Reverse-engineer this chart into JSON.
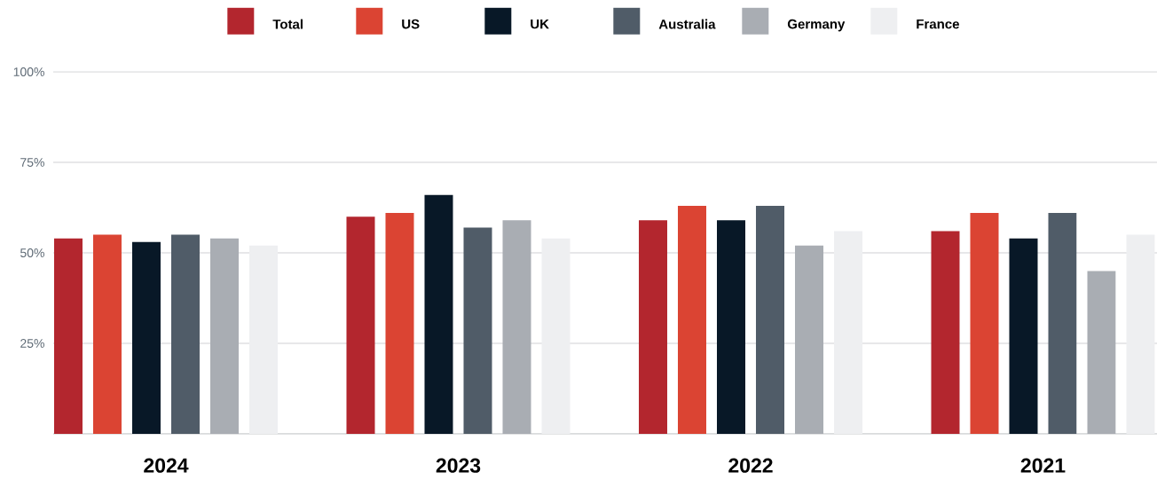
{
  "chart_data": {
    "type": "bar",
    "categories": [
      "2024",
      "2023",
      "2022",
      "2021"
    ],
    "series": [
      {
        "name": "Total",
        "color": "#b3262e",
        "values": [
          54,
          60,
          59,
          56
        ]
      },
      {
        "name": "US",
        "color": "#db4433",
        "values": [
          55,
          61,
          63,
          61
        ]
      },
      {
        "name": "UK",
        "color": "#081827",
        "values": [
          53,
          66,
          59,
          54
        ]
      },
      {
        "name": "Australia",
        "color": "#505c68",
        "values": [
          55,
          57,
          63,
          61
        ]
      },
      {
        "name": "Germany",
        "color": "#a9adb3",
        "values": [
          54,
          59,
          52,
          45
        ]
      },
      {
        "name": "France",
        "color": "#eeeff1",
        "values": [
          52,
          54,
          56,
          55
        ]
      }
    ],
    "ylim": [
      0,
      100
    ],
    "yticks": [
      {
        "value": 25,
        "label": "25%"
      },
      {
        "value": 50,
        "label": "50%"
      },
      {
        "value": 75,
        "label": "75%"
      },
      {
        "value": 100,
        "label": "100%"
      }
    ],
    "grid": "y",
    "legend": "top"
  }
}
